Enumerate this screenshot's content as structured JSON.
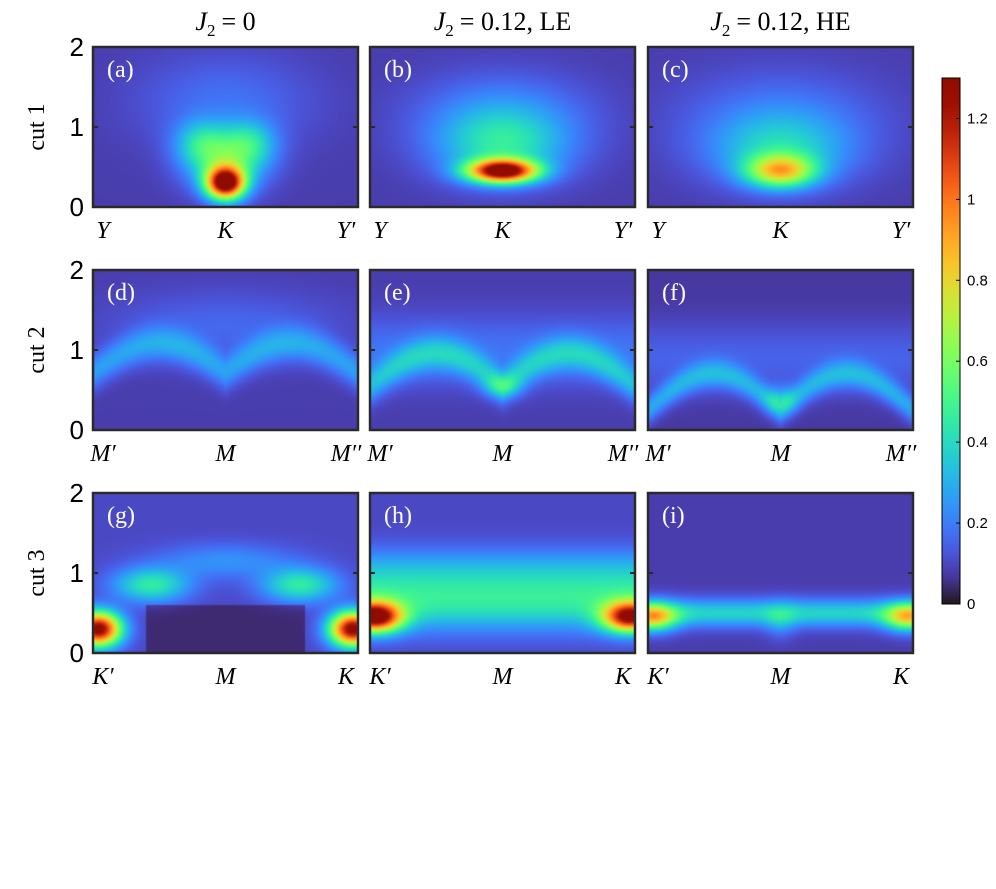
{
  "chart_data": {
    "type": "heatmap",
    "column_titles": [
      {
        "var": "J",
        "sub": "2",
        "eq": "= 0",
        "suffix": ""
      },
      {
        "var": "J",
        "sub": "2",
        "eq": "= 0.12,",
        "suffix": " LE"
      },
      {
        "var": "J",
        "sub": "2",
        "eq": "= 0.12,",
        "suffix": " HE"
      }
    ],
    "row_labels": [
      "cut 1",
      "cut 2",
      "cut 3"
    ],
    "ylim": [
      0,
      2
    ],
    "yticks": [
      "0",
      "1",
      "2"
    ],
    "x_ticks_by_row": [
      [
        "Y",
        "K",
        "Y′"
      ],
      [
        "M′",
        "M",
        "M′′"
      ],
      [
        "K′",
        "M",
        "K"
      ]
    ],
    "colorbar": {
      "colormap": "turbo",
      "range": [
        0,
        1.3
      ],
      "ticks": [
        "0",
        "0.2",
        "0.4",
        "0.6",
        "0.8",
        "1",
        "1.2"
      ]
    },
    "panels": [
      {
        "label": "(a)",
        "row": 0,
        "col": 0,
        "background": 0.08,
        "features": [
          {
            "shape": "blob",
            "x": 0.5,
            "y": 0.3,
            "amp": 1.2,
            "sx": 0.05,
            "sy": 0.14
          },
          {
            "shape": "blob",
            "x": 0.5,
            "y": 0.55,
            "amp": 0.35,
            "sx": 0.1,
            "sy": 0.25
          },
          {
            "shape": "blob",
            "x": 0.41,
            "y": 0.8,
            "amp": 0.25,
            "sx": 0.07,
            "sy": 0.2
          },
          {
            "shape": "blob",
            "x": 0.59,
            "y": 0.8,
            "amp": 0.25,
            "sx": 0.07,
            "sy": 0.2
          },
          {
            "shape": "blob",
            "x": 0.5,
            "y": 1.3,
            "amp": 0.1,
            "sx": 0.22,
            "sy": 0.4
          }
        ]
      },
      {
        "label": "(b)",
        "row": 0,
        "col": 1,
        "background": 0.08,
        "features": [
          {
            "shape": "blob",
            "x": 0.5,
            "y": 0.45,
            "amp": 1.2,
            "sx": 0.09,
            "sy": 0.1
          },
          {
            "shape": "blob",
            "x": 0.5,
            "y": 0.75,
            "amp": 0.3,
            "sx": 0.17,
            "sy": 0.3
          },
          {
            "shape": "blob",
            "x": 0.5,
            "y": 1.15,
            "amp": 0.15,
            "sx": 0.22,
            "sy": 0.35
          }
        ]
      },
      {
        "label": "(c)",
        "row": 0,
        "col": 2,
        "background": 0.08,
        "features": [
          {
            "shape": "blob",
            "x": 0.5,
            "y": 0.45,
            "amp": 0.65,
            "sx": 0.09,
            "sy": 0.14
          },
          {
            "shape": "blob",
            "x": 0.5,
            "y": 0.7,
            "amp": 0.25,
            "sx": 0.18,
            "sy": 0.3
          },
          {
            "shape": "blob",
            "x": 0.5,
            "y": 1.1,
            "amp": 0.12,
            "sx": 0.25,
            "sy": 0.4
          }
        ]
      },
      {
        "label": "(d)",
        "row": 1,
        "col": 0,
        "background": 0.08,
        "features": [
          {
            "shape": "curve",
            "arches": 2,
            "base": 0.72,
            "height": 0.4,
            "amp": 0.18,
            "width": 0.15
          },
          {
            "shape": "blob",
            "x": 0.5,
            "y": 1.3,
            "amp": 0.08,
            "sx": 0.3,
            "sy": 0.3
          }
        ]
      },
      {
        "label": "(e)",
        "row": 1,
        "col": 1,
        "background": 0.08,
        "features": [
          {
            "shape": "curve",
            "arches": 2,
            "base": 0.55,
            "height": 0.45,
            "amp": 0.22,
            "width": 0.15
          },
          {
            "shape": "band",
            "y": 1.0,
            "amp": 0.1,
            "sy": 0.3
          },
          {
            "shape": "blob",
            "x": 0.5,
            "y": 0.55,
            "amp": 0.2,
            "sx": 0.05,
            "sy": 0.1
          }
        ]
      },
      {
        "label": "(f)",
        "row": 1,
        "col": 2,
        "background": 0.07,
        "features": [
          {
            "shape": "curve",
            "arches": 2,
            "base": 0.25,
            "height": 0.5,
            "amp": 0.2,
            "width": 0.12
          },
          {
            "shape": "blob",
            "x": 0.5,
            "y": 0.38,
            "amp": 0.2,
            "sx": 0.04,
            "sy": 0.12
          },
          {
            "shape": "band",
            "y": 0.9,
            "amp": 0.08,
            "sy": 0.3
          }
        ]
      },
      {
        "label": "(g)",
        "row": 2,
        "col": 0,
        "background": 0.1,
        "features": [
          {
            "shape": "blob",
            "x": 0.02,
            "y": 0.3,
            "amp": 1.2,
            "sx": 0.06,
            "sy": 0.15
          },
          {
            "shape": "blob",
            "x": 0.98,
            "y": 0.3,
            "amp": 1.2,
            "sx": 0.06,
            "sy": 0.15
          },
          {
            "shape": "blob",
            "x": 0.22,
            "y": 0.85,
            "amp": 0.35,
            "sx": 0.1,
            "sy": 0.15
          },
          {
            "shape": "blob",
            "x": 0.78,
            "y": 0.85,
            "amp": 0.35,
            "sx": 0.1,
            "sy": 0.15
          },
          {
            "shape": "blob",
            "x": 0.5,
            "y": 1.15,
            "amp": 0.14,
            "sx": 0.18,
            "sy": 0.15
          },
          {
            "shape": "dark",
            "x0": 0.2,
            "x1": 0.8,
            "y0": 0.0,
            "y1": 0.6,
            "depth": 0.6
          }
        ]
      },
      {
        "label": "(h)",
        "row": 2,
        "col": 1,
        "background": 0.1,
        "features": [
          {
            "shape": "blob",
            "x": 0.02,
            "y": 0.45,
            "amp": 1.1,
            "sx": 0.07,
            "sy": 0.13
          },
          {
            "shape": "blob",
            "x": 0.98,
            "y": 0.45,
            "amp": 1.0,
            "sx": 0.07,
            "sy": 0.13
          },
          {
            "shape": "band",
            "y": 0.65,
            "amp": 0.35,
            "sy": 0.25
          },
          {
            "shape": "band",
            "y": 1.05,
            "amp": 0.15,
            "sy": 0.2
          }
        ]
      },
      {
        "label": "(i)",
        "row": 2,
        "col": 2,
        "background": 0.08,
        "features": [
          {
            "shape": "blob",
            "x": 0.02,
            "y": 0.45,
            "amp": 0.6,
            "sx": 0.06,
            "sy": 0.12
          },
          {
            "shape": "blob",
            "x": 0.98,
            "y": 0.45,
            "amp": 0.55,
            "sx": 0.06,
            "sy": 0.12
          },
          {
            "shape": "band",
            "y": 0.5,
            "amp": 0.3,
            "sy": 0.12
          },
          {
            "shape": "blob",
            "x": 0.5,
            "y": 0.4,
            "amp": 0.12,
            "sx": 0.04,
            "sy": 0.15
          }
        ]
      }
    ]
  }
}
